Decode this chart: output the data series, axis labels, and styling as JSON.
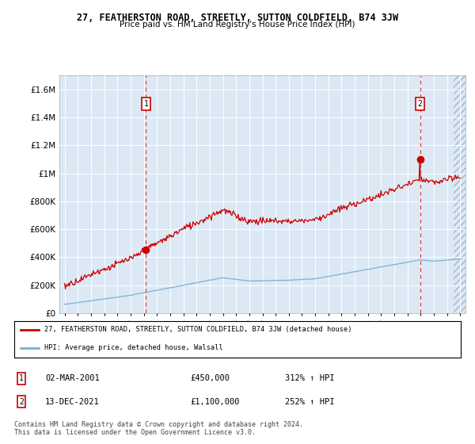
{
  "title": "27, FEATHERSTON ROAD, STREETLY, SUTTON COLDFIELD, B74 3JW",
  "subtitle": "Price paid vs. HM Land Registry's House Price Index (HPI)",
  "bg_color": "#dce9f5",
  "hatch_color": "#b8cfe0",
  "red_line_color": "#cc0000",
  "blue_line_color": "#7ab0d4",
  "marker_color": "#cc0000",
  "vline_color": "#dd4444",
  "ylim": [
    0,
    1700000
  ],
  "yticks": [
    0,
    200000,
    400000,
    600000,
    800000,
    1000000,
    1200000,
    1400000,
    1600000
  ],
  "ytick_labels": [
    "£0",
    "£200K",
    "£400K",
    "£600K",
    "£800K",
    "£1M",
    "£1.2M",
    "£1.4M",
    "£1.6M"
  ],
  "xmin": 1994.6,
  "xmax": 2025.4,
  "ann1_x": 2001.17,
  "ann1_y": 450000,
  "ann2_x": 2021.95,
  "ann2_y": 1100000,
  "legend_label1": "27, FEATHERSTON ROAD, STREETLY, SUTTON COLDFIELD, B74 3JW (detached house)",
  "legend_label2": "HPI: Average price, detached house, Walsall",
  "footer": "Contains HM Land Registry data © Crown copyright and database right 2024.\nThis data is licensed under the Open Government Licence v3.0.",
  "table_rows": [
    {
      "num": "1",
      "date": "02-MAR-2001",
      "price": "£450,000",
      "pct": "312% ↑ HPI"
    },
    {
      "num": "2",
      "date": "13-DEC-2021",
      "price": "£1,100,000",
      "pct": "252% ↑ HPI"
    }
  ]
}
